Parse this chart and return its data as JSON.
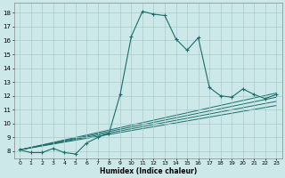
{
  "title": "",
  "xlabel": "Humidex (Indice chaleur)",
  "bg_color": "#cce8e8",
  "grid_color": "#aacccc",
  "line_color": "#1a6e6a",
  "xlim": [
    -0.5,
    23.5
  ],
  "ylim": [
    7.5,
    18.7
  ],
  "xticks": [
    0,
    1,
    2,
    3,
    4,
    5,
    6,
    7,
    8,
    9,
    10,
    11,
    12,
    13,
    14,
    15,
    16,
    17,
    18,
    19,
    20,
    21,
    22,
    23
  ],
  "yticks": [
    8,
    9,
    10,
    11,
    12,
    13,
    14,
    15,
    16,
    17,
    18
  ],
  "series": [
    [
      0,
      8.1
    ],
    [
      1,
      7.9
    ],
    [
      2,
      7.9
    ],
    [
      3,
      8.2
    ],
    [
      4,
      7.9
    ],
    [
      5,
      7.8
    ],
    [
      6,
      8.6
    ],
    [
      7,
      9.0
    ],
    [
      8,
      9.3
    ],
    [
      9,
      12.1
    ],
    [
      10,
      16.3
    ],
    [
      11,
      18.1
    ],
    [
      12,
      17.9
    ],
    [
      13,
      17.8
    ],
    [
      14,
      16.1
    ],
    [
      15,
      15.3
    ],
    [
      16,
      16.2
    ],
    [
      17,
      12.6
    ],
    [
      18,
      12.0
    ],
    [
      19,
      11.9
    ],
    [
      20,
      12.5
    ],
    [
      21,
      12.1
    ],
    [
      22,
      11.8
    ],
    [
      23,
      12.1
    ]
  ],
  "ref_lines": [
    [
      [
        0,
        8.1
      ],
      [
        23,
        12.2
      ]
    ],
    [
      [
        0,
        8.1
      ],
      [
        23,
        11.9
      ]
    ],
    [
      [
        0,
        8.1
      ],
      [
        23,
        11.6
      ]
    ],
    [
      [
        0,
        8.1
      ],
      [
        23,
        11.3
      ]
    ]
  ]
}
